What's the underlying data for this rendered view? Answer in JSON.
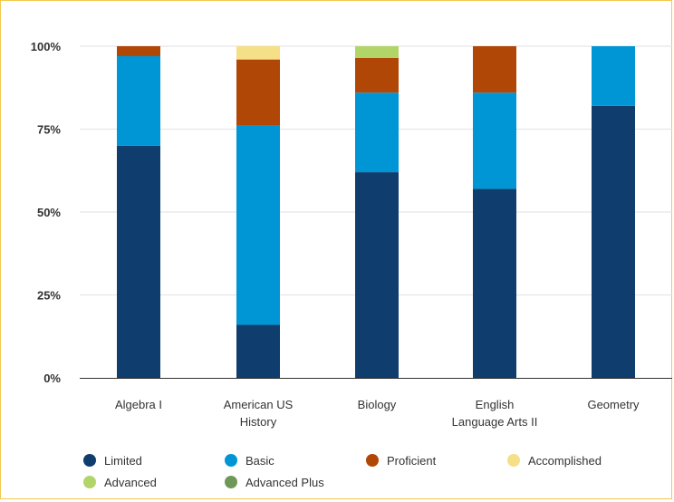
{
  "chart_data": {
    "type": "bar",
    "stacked": true,
    "percent": true,
    "categories": [
      "Algebra I",
      [
        "American US",
        "History"
      ],
      "Biology",
      [
        "English",
        "Language Arts II"
      ],
      "Geometry"
    ],
    "series": [
      {
        "name": "Limited",
        "color": "#0e3d6e",
        "values": [
          70,
          16,
          62,
          57,
          82
        ]
      },
      {
        "name": "Basic",
        "color": "#0095d4",
        "values": [
          27,
          60,
          24,
          29,
          18
        ]
      },
      {
        "name": "Proficient",
        "color": "#b14706",
        "values": [
          3,
          20,
          10.5,
          14,
          0
        ]
      },
      {
        "name": "Accomplished",
        "color": "#f5df87",
        "values": [
          0,
          4,
          0,
          0,
          0
        ]
      },
      {
        "name": "Advanced",
        "color": "#b2d56a",
        "values": [
          0,
          0,
          3.5,
          0,
          0
        ]
      },
      {
        "name": "Advanced Plus",
        "color": "#6f9858",
        "values": [
          0,
          0,
          0,
          0,
          0
        ]
      }
    ],
    "y_ticks": [
      "0%",
      "25%",
      "50%",
      "75%",
      "100%"
    ],
    "ylim": [
      0,
      100
    ],
    "grid": true,
    "legend_position": "bottom"
  }
}
